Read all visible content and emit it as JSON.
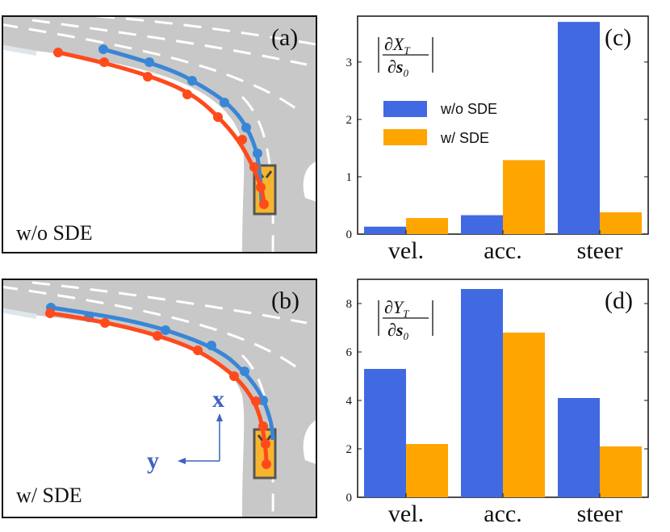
{
  "colors": {
    "blue": "#4169E1",
    "orange": "#FFA500",
    "traj_blue": "#3a86d6",
    "traj_red": "#ff4a1c",
    "road": "#c8c8c8",
    "car": "#f5b52e"
  },
  "scenes": [
    {
      "panel": "(a)",
      "caption": "w/o SDE"
    },
    {
      "panel": "(b)",
      "caption": "w/ SDE",
      "axis_x": "x",
      "axis_y": "y"
    }
  ],
  "chart_data": [
    {
      "type": "bar",
      "panel": "(c)",
      "ylabel": {
        "numerator": "∂X",
        "num_sub": "T",
        "denominator": "∂s",
        "den_sub": "0"
      },
      "categories": [
        "vel.",
        "acc.",
        "steer"
      ],
      "series": [
        {
          "name": "w/o SDE",
          "color": "#4169E1",
          "values": [
            0.13,
            0.33,
            3.7
          ]
        },
        {
          "name": "w/ SDE",
          "color": "#FFA500",
          "values": [
            0.28,
            1.29,
            0.38
          ]
        }
      ],
      "ylim": [
        0,
        3.8
      ],
      "yticks": [
        0,
        1,
        2,
        3
      ],
      "legend": [
        "w/o SDE",
        "w/ SDE"
      ]
    },
    {
      "type": "bar",
      "panel": "(d)",
      "ylabel": {
        "numerator": "∂Y",
        "num_sub": "T",
        "denominator": "∂s",
        "den_sub": "0"
      },
      "categories": [
        "vel.",
        "acc.",
        "steer"
      ],
      "series": [
        {
          "name": "w/o SDE",
          "color": "#4169E1",
          "values": [
            5.3,
            8.6,
            4.1
          ]
        },
        {
          "name": "w/ SDE",
          "color": "#FFA500",
          "values": [
            2.2,
            6.8,
            2.1
          ]
        }
      ],
      "ylim": [
        0,
        9.0
      ],
      "yticks": [
        0,
        2,
        4,
        6,
        8
      ]
    }
  ]
}
